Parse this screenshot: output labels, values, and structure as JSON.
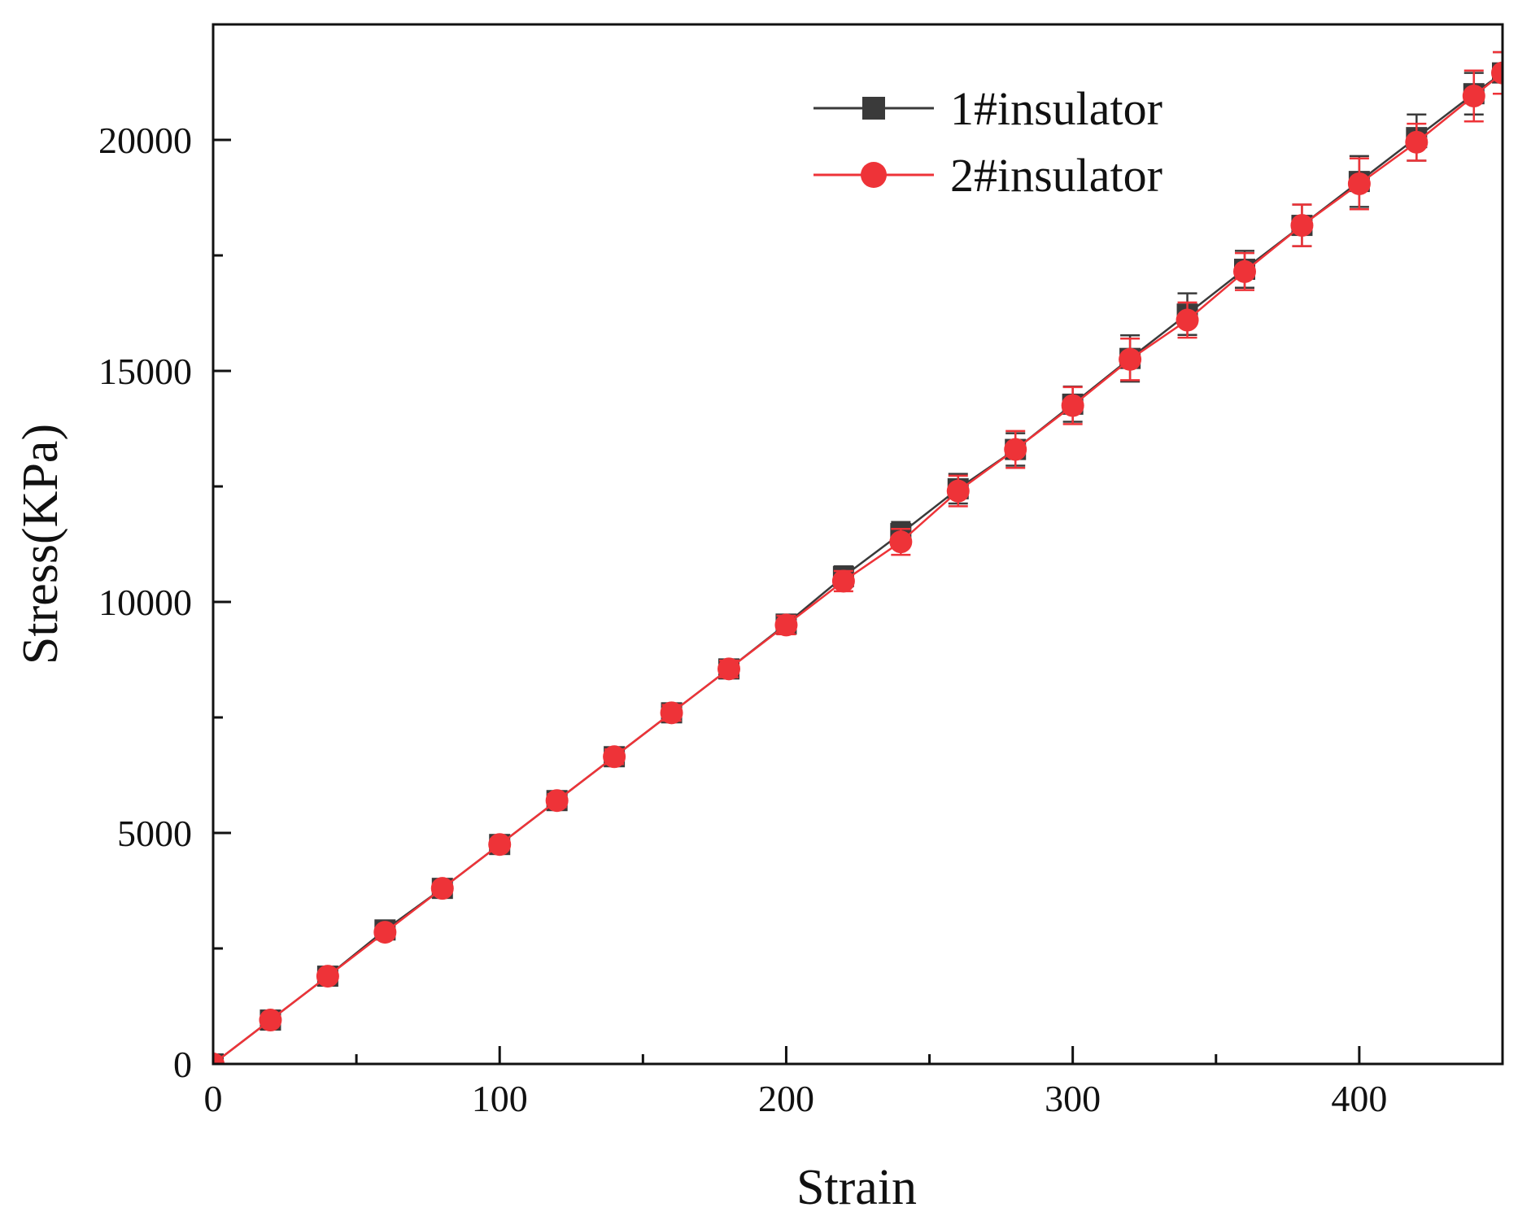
{
  "chart_data": {
    "type": "line",
    "title": "",
    "xlabel": "Strain",
    "ylabel": "Stress(KPa)",
    "xlim": [
      0,
      450
    ],
    "ylim": [
      0,
      22500
    ],
    "x_ticks": [
      0,
      100,
      200,
      300,
      400
    ],
    "x_tick_labels": [
      "0",
      "100",
      "200",
      "300",
      "400"
    ],
    "x_minor_ticks": [
      50,
      150,
      250,
      350
    ],
    "y_ticks": [
      0,
      5000,
      10000,
      15000,
      20000
    ],
    "y_tick_labels": [
      "0",
      "5000",
      "10000",
      "15000",
      "20000"
    ],
    "y_minor_ticks": [
      2500,
      7500,
      12500,
      17500
    ],
    "grid": false,
    "legend_position": "top-right",
    "x": [
      0,
      20,
      40,
      60,
      80,
      100,
      120,
      140,
      160,
      180,
      200,
      220,
      240,
      260,
      280,
      300,
      320,
      340,
      360,
      380,
      400,
      420,
      440,
      450
    ],
    "series": [
      {
        "name": "1#insulator",
        "color": "#3a3a3a",
        "marker": "square",
        "values": [
          0,
          950,
          1900,
          2900,
          3800,
          4750,
          5700,
          6650,
          7600,
          8550,
          9520,
          10550,
          11480,
          12450,
          13300,
          14280,
          15270,
          16230,
          17200,
          18150,
          19100,
          20050,
          21000,
          21450
        ],
        "errors": [
          0,
          60,
          80,
          100,
          110,
          120,
          140,
          160,
          170,
          180,
          200,
          220,
          250,
          320,
          350,
          380,
          500,
          450,
          400,
          450,
          550,
          500,
          450,
          450
        ]
      },
      {
        "name": "2#insulator",
        "color": "#ee3338",
        "marker": "circle",
        "values": [
          0,
          950,
          1900,
          2850,
          3800,
          4750,
          5700,
          6650,
          7600,
          8550,
          9500,
          10450,
          11300,
          12400,
          13300,
          14250,
          15250,
          16100,
          17150,
          18150,
          19050,
          19950,
          20950,
          21450
        ],
        "errors": [
          0,
          60,
          80,
          100,
          110,
          120,
          140,
          160,
          170,
          180,
          200,
          220,
          280,
          330,
          400,
          400,
          450,
          380,
          400,
          450,
          550,
          400,
          550,
          450
        ]
      }
    ]
  }
}
